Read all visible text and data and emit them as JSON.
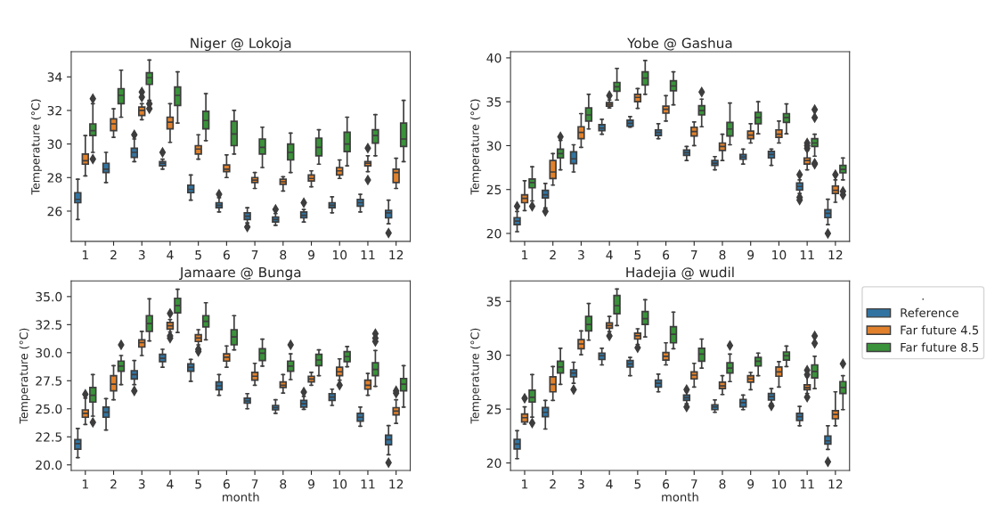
{
  "chart_data": [
    {
      "type": "box",
      "title": "Niger @ Lokoja",
      "ylabel": "Temperature (°C)",
      "categories": [
        "1",
        "2",
        "3",
        "4",
        "5",
        "6",
        "7",
        "8",
        "9",
        "10",
        "11",
        "12"
      ],
      "ylim": [
        24.2,
        35.5
      ],
      "yticks": [
        26,
        28,
        30,
        32,
        34
      ],
      "series": [
        {
          "color": "#3274a1",
          "boxes": [
            {
              "low": 25.5,
              "q1": 26.5,
              "median": 26.7,
              "q3": 27.1,
              "high": 27.9
            },
            {
              "low": 27.7,
              "q1": 28.3,
              "median": 28.5,
              "q3": 28.85,
              "high": 29.5
            },
            {
              "low": 28.95,
              "q1": 29.2,
              "median": 29.5,
              "q3": 29.75,
              "high": 30.3,
              "outliers": [
                30.55
              ]
            },
            {
              "low": 28.5,
              "q1": 28.7,
              "median": 28.85,
              "q3": 28.95,
              "high": 29.1,
              "outliers": [
                29.5
              ]
            },
            {
              "low": 26.65,
              "q1": 27.1,
              "median": 27.3,
              "q3": 27.55,
              "high": 28.15
            },
            {
              "low": 25.95,
              "q1": 26.2,
              "median": 26.35,
              "q3": 26.5,
              "high": 26.8,
              "outliers": [
                27.0
              ]
            },
            {
              "low": 25.3,
              "q1": 25.5,
              "median": 25.7,
              "q3": 25.9,
              "high": 26.2,
              "outliers": [
                25.05
              ]
            },
            {
              "low": 25.15,
              "q1": 25.35,
              "median": 25.5,
              "q3": 25.65,
              "high": 25.85,
              "outliers": [
                26.1
              ]
            },
            {
              "low": 25.35,
              "q1": 25.6,
              "median": 25.75,
              "q3": 25.95,
              "high": 26.1,
              "outliers": [
                26.5
              ]
            },
            {
              "low": 25.9,
              "q1": 26.2,
              "median": 26.35,
              "q3": 26.5,
              "high": 26.85
            },
            {
              "low": 25.95,
              "q1": 26.3,
              "median": 26.5,
              "q3": 26.7,
              "high": 27.0
            },
            {
              "low": 25.25,
              "q1": 25.6,
              "median": 25.9,
              "q3": 26.05,
              "high": 26.65,
              "outliers": [
                24.7
              ]
            }
          ]
        },
        {
          "color": "#e1812c",
          "boxes": [
            {
              "low": 28.1,
              "q1": 28.8,
              "median": 29.0,
              "q3": 29.4,
              "high": 30.5
            },
            {
              "low": 30.4,
              "q1": 30.8,
              "median": 31.2,
              "q3": 31.5,
              "high": 32.1
            },
            {
              "low": 31.45,
              "q1": 31.7,
              "median": 32.0,
              "q3": 32.2,
              "high": 32.4,
              "outliers": [
                33.1,
                32.8
              ]
            },
            {
              "low": 30.1,
              "q1": 30.9,
              "median": 31.3,
              "q3": 31.6,
              "high": 32.4
            },
            {
              "low": 29.1,
              "q1": 29.4,
              "median": 29.7,
              "q3": 29.9,
              "high": 30.55
            },
            {
              "low": 28.0,
              "q1": 28.35,
              "median": 28.5,
              "q3": 28.75,
              "high": 29.35
            },
            {
              "low": 27.35,
              "q1": 27.7,
              "median": 27.85,
              "q3": 28.0,
              "high": 28.3
            },
            {
              "low": 27.2,
              "q1": 27.6,
              "median": 27.75,
              "q3": 27.9,
              "high": 28.05
            },
            {
              "low": 27.45,
              "q1": 27.8,
              "median": 27.95,
              "q3": 28.15,
              "high": 28.4
            },
            {
              "low": 27.95,
              "q1": 28.15,
              "median": 28.4,
              "q3": 28.6,
              "high": 29.05
            },
            {
              "low": 28.35,
              "q1": 28.7,
              "median": 28.85,
              "q3": 28.95,
              "high": 29.3,
              "outliers": [
                29.75,
                27.85
              ]
            },
            {
              "low": 27.35,
              "q1": 27.7,
              "median": 28.3,
              "q3": 28.5,
              "high": 29.15
            }
          ]
        },
        {
          "color": "#3a923a",
          "boxes": [
            {
              "low": 29.5,
              "q1": 30.5,
              "median": 30.8,
              "q3": 31.2,
              "high": 32.4,
              "outliers": [
                32.7,
                29.1
              ]
            },
            {
              "low": 31.6,
              "q1": 32.4,
              "median": 32.9,
              "q3": 33.3,
              "high": 34.4
            },
            {
              "low": 32.6,
              "q1": 33.55,
              "median": 33.95,
              "q3": 34.25,
              "high": 35.0,
              "outliers": [
                32.4,
                32.1
              ]
            },
            {
              "low": 31.25,
              "q1": 32.3,
              "median": 32.9,
              "q3": 33.4,
              "high": 34.3
            },
            {
              "low": 30.2,
              "q1": 30.9,
              "median": 31.4,
              "q3": 31.95,
              "high": 33.0
            },
            {
              "low": 29.4,
              "q1": 29.9,
              "median": 30.6,
              "q3": 31.35,
              "high": 32.0
            },
            {
              "low": 28.6,
              "q1": 29.4,
              "median": 29.8,
              "q3": 30.3,
              "high": 31.0
            },
            {
              "low": 28.3,
              "q1": 29.05,
              "median": 29.5,
              "q3": 30.0,
              "high": 30.65
            },
            {
              "low": 28.8,
              "q1": 29.3,
              "median": 29.8,
              "q3": 30.35,
              "high": 30.85
            },
            {
              "low": 28.7,
              "q1": 29.55,
              "median": 30.0,
              "q3": 30.7,
              "high": 31.6
            },
            {
              "low": 29.3,
              "q1": 30.05,
              "median": 30.5,
              "q3": 30.85,
              "high": 31.75
            },
            {
              "low": 28.95,
              "q1": 29.85,
              "median": 30.3,
              "q3": 31.25,
              "high": 32.6
            }
          ]
        }
      ]
    },
    {
      "type": "box",
      "title": "Yobe @ Gashua",
      "ylabel": "Temperature (°C)",
      "categories": [
        "1",
        "2",
        "3",
        "4",
        "5",
        "6",
        "7",
        "8",
        "9",
        "10",
        "11",
        "12"
      ],
      "ylim": [
        19.1,
        40.7
      ],
      "yticks": [
        20,
        25,
        30,
        35,
        40
      ],
      "series": [
        {
          "color": "#3274a1",
          "boxes": [
            {
              "low": 20.2,
              "q1": 21.0,
              "median": 21.4,
              "q3": 21.8,
              "high": 22.5,
              "outliers": [
                23.1
              ]
            },
            {
              "low": 22.9,
              "q1": 24.05,
              "median": 24.4,
              "q3": 24.9,
              "high": 25.7,
              "outliers": [
                22.5
              ]
            },
            {
              "low": 27.0,
              "q1": 27.95,
              "median": 28.5,
              "q3": 29.3,
              "high": 30.1
            },
            {
              "low": 31.3,
              "q1": 31.7,
              "median": 32.0,
              "q3": 32.4,
              "high": 33.0
            },
            {
              "low": 32.1,
              "q1": 32.2,
              "median": 32.55,
              "q3": 32.9,
              "high": 33.3
            },
            {
              "low": 30.8,
              "q1": 31.15,
              "median": 31.5,
              "q3": 31.8,
              "high": 32.5
            },
            {
              "low": 28.3,
              "q1": 28.9,
              "median": 29.2,
              "q3": 29.5,
              "high": 29.9
            },
            {
              "low": 27.25,
              "q1": 27.75,
              "median": 28.0,
              "q3": 28.3,
              "high": 28.75
            },
            {
              "low": 27.9,
              "q1": 28.45,
              "median": 28.7,
              "q3": 29.0,
              "high": 29.6
            },
            {
              "low": 27.75,
              "q1": 28.6,
              "median": 29.0,
              "q3": 29.35,
              "high": 29.6
            },
            {
              "low": 24.55,
              "q1": 24.95,
              "median": 25.35,
              "q3": 25.75,
              "high": 26.1,
              "outliers": [
                26.7,
                24.1,
                23.8
              ]
            },
            {
              "low": 21.0,
              "q1": 21.8,
              "median": 22.3,
              "q3": 22.7,
              "high": 23.9,
              "outliers": [
                20.0
              ]
            }
          ]
        },
        {
          "color": "#e1812c",
          "boxes": [
            {
              "low": 22.6,
              "q1": 23.5,
              "median": 24.0,
              "q3": 24.4,
              "high": 26.0
            },
            {
              "low": 25.5,
              "q1": 26.25,
              "median": 27.0,
              "q3": 28.3,
              "high": 29.1
            },
            {
              "low": 29.8,
              "q1": 30.8,
              "median": 31.5,
              "q3": 32.15,
              "high": 33.65
            },
            {
              "low": 34.3,
              "q1": 34.5,
              "median": 34.7,
              "q3": 34.9,
              "high": 35.2,
              "outliers": [
                35.7
              ]
            },
            {
              "low": 34.25,
              "q1": 35.0,
              "median": 35.5,
              "q3": 35.85,
              "high": 36.5
            },
            {
              "low": 32.8,
              "q1": 33.7,
              "median": 34.15,
              "q3": 34.5,
              "high": 35.7
            },
            {
              "low": 30.0,
              "q1": 31.1,
              "median": 31.6,
              "q3": 32.1,
              "high": 32.7
            },
            {
              "low": 28.3,
              "q1": 29.45,
              "median": 29.9,
              "q3": 30.3,
              "high": 31.3
            },
            {
              "low": 30.3,
              "q1": 30.8,
              "median": 31.2,
              "q3": 31.65,
              "high": 32.5
            },
            {
              "low": 30.3,
              "q1": 30.95,
              "median": 31.3,
              "q3": 31.8,
              "high": 32.8
            },
            {
              "low": 27.25,
              "q1": 27.9,
              "median": 28.3,
              "q3": 28.6,
              "high": 29.45,
              "outliers": [
                30.3,
                30.0,
                29.7
              ]
            },
            {
              "low": 23.55,
              "q1": 24.55,
              "median": 24.9,
              "q3": 25.4,
              "high": 26.1,
              "outliers": [
                26.7
              ]
            }
          ]
        },
        {
          "color": "#3a923a",
          "boxes": [
            {
              "low": 23.7,
              "q1": 25.2,
              "median": 25.8,
              "q3": 26.2,
              "high": 27.6,
              "outliers": [
                23.1
              ]
            },
            {
              "low": 27.25,
              "q1": 28.6,
              "median": 29.1,
              "q3": 29.6,
              "high": 30.6,
              "outliers": [
                31.0
              ]
            },
            {
              "low": 31.9,
              "q1": 32.8,
              "median": 33.5,
              "q3": 34.3,
              "high": 35.85
            },
            {
              "low": 35.2,
              "q1": 36.2,
              "median": 36.7,
              "q3": 37.2,
              "high": 38.8
            },
            {
              "low": 35.85,
              "q1": 36.9,
              "median": 37.7,
              "q3": 38.4,
              "high": 39.7
            },
            {
              "low": 34.65,
              "q1": 36.25,
              "median": 36.8,
              "q3": 37.4,
              "high": 38.4
            },
            {
              "low": 32.15,
              "q1": 33.5,
              "median": 34.0,
              "q3": 34.55,
              "high": 35.3,
              "outliers": [
                36.1
              ]
            },
            {
              "low": 30.1,
              "q1": 31.1,
              "median": 31.9,
              "q3": 32.65,
              "high": 34.85
            },
            {
              "low": 31.35,
              "q1": 32.5,
              "median": 33.2,
              "q3": 33.8,
              "high": 35.0
            },
            {
              "low": 31.35,
              "q1": 32.65,
              "median": 33.2,
              "q3": 33.65,
              "high": 34.75
            },
            {
              "low": 28.8,
              "q1": 29.9,
              "median": 30.3,
              "q3": 30.8,
              "high": 31.3,
              "outliers": [
                34.1,
                33.2,
                28.0,
                27.9
              ]
            },
            {
              "low": 26.1,
              "q1": 26.9,
              "median": 27.3,
              "q3": 27.75,
              "high": 28.6,
              "outliers": [
                24.8,
                24.4
              ]
            }
          ]
        }
      ]
    },
    {
      "type": "box",
      "title": "Jamaare @ Bunga",
      "ylabel": "Temperature (°C)",
      "xlabel": "month",
      "categories": [
        "1",
        "2",
        "3",
        "4",
        "5",
        "6",
        "7",
        "8",
        "9",
        "10",
        "11",
        "12"
      ],
      "ylim": [
        19.5,
        36.4
      ],
      "yticks": [
        {
          "value": 20,
          "label": "20.0"
        },
        {
          "value": 22.5,
          "label": "22.5"
        },
        {
          "value": 25,
          "label": "25.0"
        },
        {
          "value": 27.5,
          "label": "27.5"
        },
        {
          "value": 30,
          "label": "30.0"
        },
        {
          "value": 32.5,
          "label": "32.5"
        },
        {
          "value": 35,
          "label": "35.0"
        }
      ],
      "series": [
        {
          "color": "#3274a1",
          "boxes": [
            {
              "low": 20.65,
              "q1": 21.4,
              "median": 21.9,
              "q3": 22.25,
              "high": 23.25
            },
            {
              "low": 23.1,
              "q1": 24.25,
              "median": 24.7,
              "q3": 25.15,
              "high": 25.9
            },
            {
              "low": 27.15,
              "q1": 27.65,
              "median": 28.05,
              "q3": 28.4,
              "high": 29.3,
              "outliers": [
                26.6
              ]
            },
            {
              "low": 28.7,
              "q1": 29.2,
              "median": 29.5,
              "q3": 29.85,
              "high": 30.3
            },
            {
              "low": 27.45,
              "q1": 28.35,
              "median": 28.7,
              "q3": 29.0,
              "high": 29.4
            },
            {
              "low": 26.2,
              "q1": 26.7,
              "median": 27.05,
              "q3": 27.4,
              "high": 28.05
            },
            {
              "low": 25.0,
              "q1": 25.5,
              "median": 25.7,
              "q3": 25.95,
              "high": 26.35
            },
            {
              "low": 24.6,
              "q1": 24.9,
              "median": 25.1,
              "q3": 25.3,
              "high": 25.8
            },
            {
              "low": 24.95,
              "q1": 25.15,
              "median": 25.45,
              "q3": 25.75,
              "high": 26.1,
              "outliers": [
                26.5
              ]
            },
            {
              "low": 25.3,
              "q1": 25.75,
              "median": 26.05,
              "q3": 26.35,
              "high": 26.75
            },
            {
              "low": 23.45,
              "q1": 23.9,
              "median": 24.25,
              "q3": 24.6,
              "high": 25.15
            },
            {
              "low": 20.9,
              "q1": 21.8,
              "median": 22.25,
              "q3": 22.65,
              "high": 23.5,
              "outliers": [
                20.2
              ]
            }
          ]
        },
        {
          "color": "#e1812c",
          "boxes": [
            {
              "low": 23.6,
              "q1": 24.25,
              "median": 24.6,
              "q3": 24.9,
              "high": 25.95,
              "outliers": [
                26.3
              ]
            },
            {
              "low": 25.8,
              "q1": 26.6,
              "median": 27.2,
              "q3": 27.95,
              "high": 28.85
            },
            {
              "low": 29.75,
              "q1": 30.5,
              "median": 30.9,
              "q3": 31.15,
              "high": 31.9
            },
            {
              "low": 31.85,
              "q1": 32.1,
              "median": 32.4,
              "q3": 32.7,
              "high": 32.95,
              "outliers": [
                33.5,
                31.5,
                31.3
              ]
            },
            {
              "low": 30.7,
              "q1": 31.0,
              "median": 31.3,
              "q3": 31.6,
              "high": 32.05,
              "outliers": [
                30.3,
                30.1
              ]
            },
            {
              "low": 28.7,
              "q1": 29.25,
              "median": 29.6,
              "q3": 29.9,
              "high": 30.6
            },
            {
              "low": 27.1,
              "q1": 27.55,
              "median": 27.9,
              "q3": 28.25,
              "high": 29.05
            },
            {
              "low": 26.4,
              "q1": 26.9,
              "median": 27.1,
              "q3": 27.4,
              "high": 28.05
            },
            {
              "low": 27.1,
              "q1": 27.4,
              "median": 27.65,
              "q3": 27.9,
              "high": 28.25
            },
            {
              "low": 27.55,
              "q1": 27.95,
              "median": 28.3,
              "q3": 28.7,
              "high": 29.45,
              "outliers": [
                27.1
              ]
            },
            {
              "low": 26.2,
              "q1": 26.75,
              "median": 27.1,
              "q3": 27.55,
              "high": 28.15
            },
            {
              "low": 23.7,
              "q1": 24.45,
              "median": 24.8,
              "q3": 25.1,
              "high": 25.8,
              "outliers": [
                26.6,
                26.4
              ]
            }
          ]
        },
        {
          "color": "#3a923a",
          "boxes": [
            {
              "low": 24.35,
              "q1": 25.6,
              "median": 26.2,
              "q3": 26.9,
              "high": 28.05,
              "outliers": [
                23.8
              ]
            },
            {
              "low": 27.15,
              "q1": 28.35,
              "median": 28.8,
              "q3": 29.25,
              "high": 29.75,
              "outliers": [
                30.7
              ]
            },
            {
              "low": 31.05,
              "q1": 31.9,
              "median": 32.6,
              "q3": 33.3,
              "high": 34.8
            },
            {
              "low": 31.8,
              "q1": 33.55,
              "median": 34.2,
              "q3": 34.85,
              "high": 35.65
            },
            {
              "low": 31.15,
              "q1": 32.3,
              "median": 32.8,
              "q3": 33.3,
              "high": 34.45
            },
            {
              "low": 30.25,
              "q1": 30.7,
              "median": 31.4,
              "q3": 32.05,
              "high": 33.3
            },
            {
              "low": 28.8,
              "q1": 29.3,
              "median": 29.95,
              "q3": 30.35,
              "high": 31.2
            },
            {
              "low": 27.6,
              "q1": 28.35,
              "median": 28.8,
              "q3": 29.25,
              "high": 29.9,
              "outliers": [
                30.7
              ]
            },
            {
              "low": 27.95,
              "q1": 28.85,
              "median": 29.35,
              "q3": 29.85,
              "high": 30.25
            },
            {
              "low": 28.75,
              "q1": 29.2,
              "median": 29.65,
              "q3": 30.1,
              "high": 30.55
            },
            {
              "low": 27.0,
              "q1": 27.95,
              "median": 28.5,
              "q3": 29.1,
              "high": 30.2,
              "outliers": [
                31.7,
                31.3,
                31.0
              ]
            },
            {
              "low": 25.15,
              "q1": 26.6,
              "median": 27.2,
              "q3": 27.7,
              "high": 28.85
            }
          ]
        }
      ]
    },
    {
      "type": "box",
      "title": "Hadejia @ wudil",
      "ylabel": "Temperature (°C)",
      "xlabel": "month",
      "categories": [
        "1",
        "2",
        "3",
        "4",
        "5",
        "6",
        "7",
        "8",
        "9",
        "10",
        "11",
        "12"
      ],
      "ylim": [
        19.3,
        36.9
      ],
      "yticks": [
        20,
        25,
        30,
        35
      ],
      "legend": "right",
      "legend_title": ".",
      "series": [
        {
          "name": "Reference",
          "color": "#3274a1",
          "boxes": [
            {
              "low": 20.4,
              "q1": 21.3,
              "median": 21.75,
              "q3": 22.2,
              "high": 23.0
            },
            {
              "low": 23.15,
              "q1": 24.3,
              "median": 24.7,
              "q3": 25.15,
              "high": 25.8
            },
            {
              "low": 27.4,
              "q1": 28.0,
              "median": 28.35,
              "q3": 28.65,
              "high": 29.35,
              "outliers": [
                26.8
              ]
            },
            {
              "low": 29.1,
              "q1": 29.6,
              "median": 29.95,
              "q3": 30.2,
              "high": 30.65
            },
            {
              "low": 28.1,
              "q1": 28.9,
              "median": 29.2,
              "q3": 29.5,
              "high": 29.8
            },
            {
              "low": 26.6,
              "q1": 27.05,
              "median": 27.4,
              "q3": 27.7,
              "high": 28.25
            },
            {
              "low": 25.5,
              "q1": 25.8,
              "median": 26.05,
              "q3": 26.3,
              "high": 26.6,
              "outliers": [
                26.8,
                25.2
              ]
            },
            {
              "low": 24.7,
              "q1": 24.95,
              "median": 25.2,
              "q3": 25.4,
              "high": 25.85
            },
            {
              "low": 24.95,
              "q1": 25.2,
              "median": 25.6,
              "q3": 25.9,
              "high": 26.3
            },
            {
              "low": 25.5,
              "q1": 25.85,
              "median": 26.15,
              "q3": 26.45,
              "high": 26.9,
              "outliers": [
                25.3
              ]
            },
            {
              "low": 23.45,
              "q1": 23.95,
              "median": 24.3,
              "q3": 24.6,
              "high": 25.25
            },
            {
              "low": 21.25,
              "q1": 21.75,
              "median": 22.05,
              "q3": 22.5,
              "high": 23.45,
              "outliers": [
                20.1
              ]
            }
          ]
        },
        {
          "name": "Far future 4.5",
          "color": "#e1812c",
          "boxes": [
            {
              "low": 23.6,
              "q1": 23.8,
              "median": 24.2,
              "q3": 24.55,
              "high": 25.2,
              "outliers": [
                26.0
              ]
            },
            {
              "low": 25.8,
              "q1": 26.6,
              "median": 27.3,
              "q3": 28.0,
              "high": 28.95
            },
            {
              "low": 30.05,
              "q1": 30.6,
              "median": 31.05,
              "q3": 31.45,
              "high": 32.25
            },
            {
              "low": 32.2,
              "q1": 32.5,
              "median": 32.75,
              "q3": 33.0,
              "high": 33.6,
              "outliers": [
                31.8
              ]
            },
            {
              "low": 31.0,
              "q1": 31.5,
              "median": 31.8,
              "q3": 32.05,
              "high": 32.45,
              "outliers": [
                30.7
              ]
            },
            {
              "low": 29.1,
              "q1": 29.55,
              "median": 29.9,
              "q3": 30.25,
              "high": 31.15
            },
            {
              "low": 27.05,
              "q1": 27.8,
              "median": 28.15,
              "q3": 28.45,
              "high": 29.25
            },
            {
              "low": 26.35,
              "q1": 26.9,
              "median": 27.15,
              "q3": 27.5,
              "high": 28.1
            },
            {
              "low": 26.8,
              "q1": 27.5,
              "median": 27.8,
              "q3": 28.1,
              "high": 28.4
            },
            {
              "low": 27.05,
              "q1": 28.05,
              "median": 28.45,
              "q3": 28.9,
              "high": 29.4
            },
            {
              "low": 26.45,
              "q1": 26.8,
              "median": 27.0,
              "q3": 27.25,
              "high": 28.0,
              "outliers": [
                28.6,
                28.2,
                26.1
              ]
            },
            {
              "low": 23.45,
              "q1": 24.1,
              "median": 24.5,
              "q3": 24.85,
              "high": 26.6
            }
          ]
        },
        {
          "name": "Far future 8.5",
          "color": "#3a923a",
          "boxes": [
            {
              "low": 24.25,
              "q1": 25.65,
              "median": 26.1,
              "q3": 26.75,
              "high": 28.2,
              "outliers": [
                23.7
              ]
            },
            {
              "low": 27.3,
              "q1": 28.35,
              "median": 28.9,
              "q3": 29.45,
              "high": 30.65
            },
            {
              "low": 31.4,
              "q1": 32.25,
              "median": 32.85,
              "q3": 33.6,
              "high": 34.8
            },
            {
              "low": 32.75,
              "q1": 33.85,
              "median": 34.6,
              "q3": 35.55,
              "high": 36.15
            },
            {
              "low": 31.7,
              "q1": 32.85,
              "median": 33.4,
              "q3": 34.05,
              "high": 35.15
            },
            {
              "low": 30.6,
              "q1": 31.15,
              "median": 31.95,
              "q3": 32.65,
              "high": 34.0
            },
            {
              "low": 28.8,
              "q1": 29.45,
              "median": 30.1,
              "q3": 30.65,
              "high": 31.5
            },
            {
              "low": 27.55,
              "q1": 28.35,
              "median": 28.8,
              "q3": 29.3,
              "high": 30.1,
              "outliers": [
                30.9
              ]
            },
            {
              "low": 28.1,
              "q1": 29.0,
              "median": 29.45,
              "q3": 29.8,
              "high": 30.2
            },
            {
              "low": 28.95,
              "q1": 29.55,
              "median": 29.95,
              "q3": 30.3,
              "high": 30.85
            },
            {
              "low": 26.9,
              "q1": 27.9,
              "median": 28.5,
              "q3": 29.1,
              "high": 29.9,
              "outliers": [
                31.8,
                31.1
              ]
            },
            {
              "low": 24.95,
              "q1": 26.45,
              "median": 27.0,
              "q3": 27.55,
              "high": 28.1,
              "outliers": [
                29.2
              ]
            }
          ]
        }
      ]
    }
  ]
}
